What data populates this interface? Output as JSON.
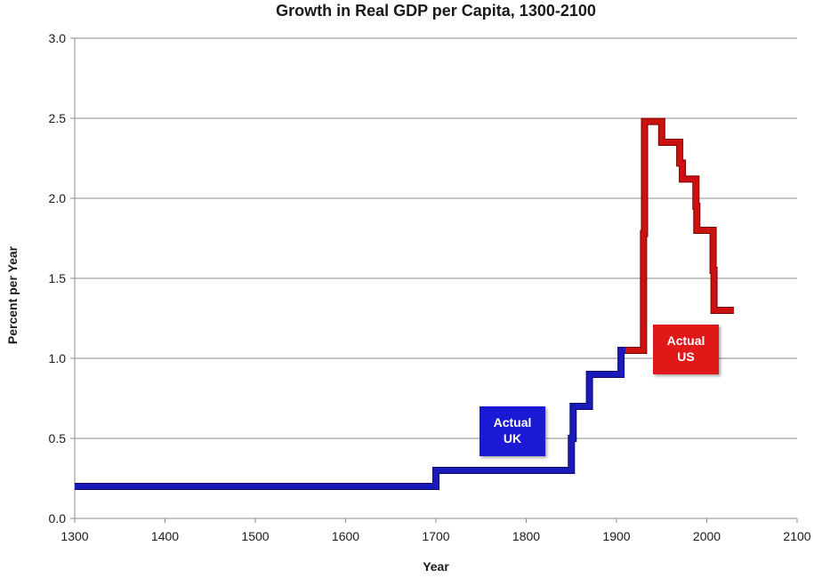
{
  "chart_data": {
    "type": "line",
    "title": "Growth in Real GDP per Capita, 1300-2100",
    "xlabel": "Year",
    "ylabel": "Percent per Year",
    "xlim": [
      1300,
      2100
    ],
    "ylim": [
      0,
      3.0
    ],
    "x_ticks": [
      "1300",
      "1400",
      "1500",
      "1600",
      "1700",
      "1800",
      "1900",
      "2000",
      "2100"
    ],
    "y_ticks": [
      "0.0",
      "0.5",
      "1.0",
      "1.5",
      "2.0",
      "2.5",
      "3.0"
    ],
    "grid": "horizontal",
    "step": true,
    "series": [
      {
        "name": "Actual UK",
        "color": "#1a1ab8",
        "points": [
          [
            1300,
            0.2
          ],
          [
            1700,
            0.2
          ],
          [
            1700,
            0.3
          ],
          [
            1850,
            0.3
          ],
          [
            1850,
            0.5
          ],
          [
            1852,
            0.5
          ],
          [
            1852,
            0.7
          ],
          [
            1870,
            0.7
          ],
          [
            1870,
            0.9
          ],
          [
            1905,
            0.9
          ],
          [
            1905,
            1.05
          ],
          [
            1910,
            1.05
          ]
        ]
      },
      {
        "name": "Actual US",
        "color": "#cc1111",
        "points": [
          [
            1910,
            1.05
          ],
          [
            1930,
            1.05
          ],
          [
            1930,
            1.78
          ],
          [
            1931,
            1.78
          ],
          [
            1931,
            2.48
          ],
          [
            1950,
            2.48
          ],
          [
            1950,
            2.35
          ],
          [
            1970,
            2.35
          ],
          [
            1970,
            2.22
          ],
          [
            1973,
            2.22
          ],
          [
            1973,
            2.12
          ],
          [
            1988,
            2.12
          ],
          [
            1988,
            1.95
          ],
          [
            1989,
            1.95
          ],
          [
            1989,
            1.8
          ],
          [
            2007,
            1.8
          ],
          [
            2007,
            1.55
          ],
          [
            2008,
            1.55
          ],
          [
            2008,
            1.3
          ],
          [
            2030,
            1.3
          ]
        ]
      }
    ],
    "annotations": [
      {
        "lines": [
          "Actual",
          "UK"
        ],
        "color": "#1a1ad4"
      },
      {
        "lines": [
          "Actual",
          "US"
        ],
        "color": "#e01818"
      }
    ]
  }
}
